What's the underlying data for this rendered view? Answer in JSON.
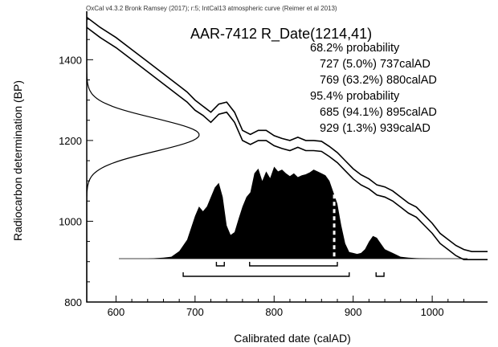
{
  "header": "OxCal v4.3.2 Bronk Ramsey (2017); r:5; IntCal13 atmospheric curve (Reimer et al 2013)",
  "chart_data": {
    "type": "area",
    "title": "AAR-7412 R_Date(1214,41)",
    "xlabel": "Calibrated date (calAD)",
    "ylabel": "Radiocarbon determination (BP)",
    "xlim": [
      563,
      1070
    ],
    "ylim": [
      800,
      1520
    ],
    "x_ticks": [
      "600",
      "700",
      "800",
      "900",
      "1000"
    ],
    "y_ticks": [
      "800",
      "1000",
      "1200",
      "1400"
    ],
    "grid": false,
    "measurement": {
      "mean_bp": 1214,
      "sigma_bp": 41
    },
    "probability_text": [
      {
        "label": "68.2% probability"
      },
      {
        "label": "727 (5.0%) 737calAD"
      },
      {
        "label": "769 (63.2%) 880calAD"
      },
      {
        "label": "95.4% probability"
      },
      {
        "label": "685 (94.1%) 895calAD"
      },
      {
        "label": "929 (1.3%) 939calAD"
      }
    ],
    "ranges_68": [
      [
        727,
        737
      ],
      [
        769,
        880
      ]
    ],
    "ranges_95": [
      [
        685,
        895
      ],
      [
        929,
        939
      ]
    ],
    "calibration_curve_upper": {
      "x": [
        563,
        580,
        600,
        620,
        640,
        660,
        680,
        690,
        700,
        710,
        720,
        730,
        740,
        750,
        760,
        770,
        780,
        790,
        800,
        810,
        820,
        830,
        840,
        850,
        860,
        870,
        880,
        890,
        900,
        910,
        920,
        930,
        940,
        950,
        960,
        970,
        980,
        990,
        1000,
        1010,
        1020,
        1030,
        1040,
        1050,
        1070
      ],
      "y": [
        1505,
        1480,
        1455,
        1425,
        1395,
        1365,
        1335,
        1320,
        1300,
        1285,
        1270,
        1290,
        1295,
        1270,
        1225,
        1215,
        1225,
        1225,
        1212,
        1205,
        1200,
        1208,
        1200,
        1200,
        1198,
        1185,
        1170,
        1150,
        1130,
        1115,
        1105,
        1090,
        1085,
        1075,
        1060,
        1045,
        1035,
        1015,
        995,
        970,
        955,
        940,
        930,
        925,
        925
      ]
    },
    "calibration_curve_lower": {
      "x": [
        563,
        580,
        600,
        620,
        640,
        660,
        680,
        690,
        700,
        710,
        720,
        730,
        740,
        750,
        760,
        770,
        780,
        790,
        800,
        810,
        820,
        830,
        840,
        850,
        860,
        870,
        880,
        890,
        900,
        910,
        920,
        930,
        940,
        950,
        960,
        970,
        980,
        990,
        1000,
        1010,
        1020,
        1030,
        1040,
        1050,
        1070
      ],
      "y": [
        1480,
        1455,
        1430,
        1400,
        1370,
        1340,
        1310,
        1295,
        1275,
        1262,
        1245,
        1265,
        1270,
        1245,
        1200,
        1190,
        1200,
        1200,
        1187,
        1180,
        1175,
        1183,
        1175,
        1175,
        1173,
        1160,
        1145,
        1125,
        1105,
        1090,
        1080,
        1065,
        1060,
        1050,
        1035,
        1020,
        1010,
        990,
        970,
        945,
        930,
        915,
        905,
        905,
        905
      ]
    },
    "posterior_density": {
      "x": [
        640,
        650,
        660,
        670,
        680,
        690,
        700,
        705,
        710,
        715,
        720,
        725,
        730,
        735,
        740,
        745,
        750,
        755,
        760,
        765,
        770,
        775,
        780,
        785,
        790,
        795,
        800,
        805,
        810,
        815,
        820,
        825,
        830,
        835,
        840,
        845,
        850,
        855,
        860,
        865,
        870,
        875,
        880,
        885,
        890,
        895,
        900,
        905,
        910,
        915,
        920,
        925,
        930,
        935,
        940,
        945,
        950,
        955,
        960,
        970,
        980,
        1000,
        1020
      ],
      "y": [
        0,
        0.005,
        0.01,
        0.02,
        0.08,
        0.2,
        0.45,
        0.55,
        0.5,
        0.55,
        0.65,
        0.75,
        0.8,
        0.65,
        0.35,
        0.25,
        0.28,
        0.42,
        0.55,
        0.65,
        0.7,
        0.9,
        0.95,
        0.82,
        0.92,
        0.85,
        0.97,
        0.92,
        0.94,
        0.9,
        0.87,
        0.9,
        0.86,
        0.88,
        0.89,
        0.91,
        0.94,
        0.92,
        0.9,
        0.88,
        0.82,
        0.7,
        0.58,
        0.35,
        0.16,
        0.07,
        0.06,
        0.05,
        0.06,
        0.1,
        0.18,
        0.24,
        0.22,
        0.16,
        0.1,
        0.08,
        0.06,
        0.04,
        0.02,
        0.01,
        0.005,
        0,
        0
      ]
    },
    "median_marker_x": 876,
    "radiocarbon_gaussian": {
      "mean": 1214,
      "sigma": 41
    }
  }
}
